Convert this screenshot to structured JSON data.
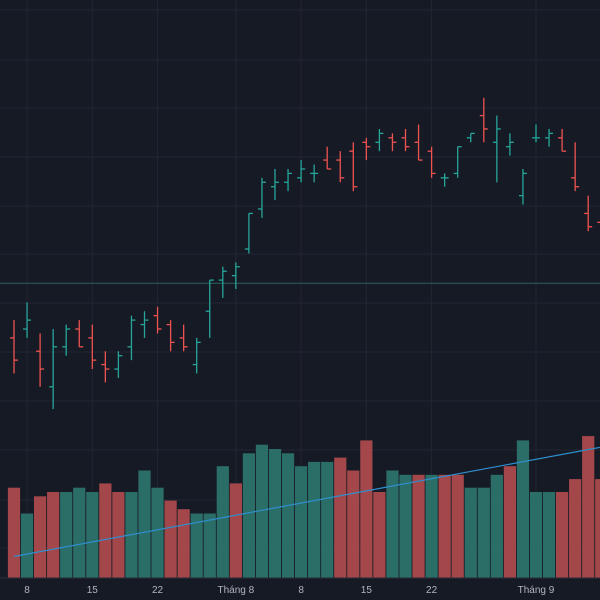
{
  "colors": {
    "background": "#161a25",
    "grid": "#232632",
    "up": "#26a69a",
    "down": "#ef5350",
    "vol_up": "#2b6e68",
    "vol_down": "#a4474a",
    "trend": "#2f8fce",
    "axis_text": "#b2b5be",
    "price_line": "#2b5f63"
  },
  "chart_data": {
    "type": "bar",
    "subtype": "ohlc-with-volume",
    "grid": true,
    "legend": "none",
    "title": "",
    "xaxis": {
      "ticks": [
        {
          "label": "8",
          "index": 1
        },
        {
          "label": "15",
          "index": 6
        },
        {
          "label": "22",
          "index": 11
        },
        {
          "label": "Tháng 8",
          "index": 17
        },
        {
          "label": "8",
          "index": 22
        },
        {
          "label": "15",
          "index": 27
        },
        {
          "label": "22",
          "index": 32
        },
        {
          "label": "Tháng 9",
          "index": 40
        }
      ]
    },
    "ylim": [
      -10,
      120
    ],
    "price_line": 56.3,
    "ohlc": [
      [
        44,
        48,
        36,
        39
      ],
      [
        46,
        52,
        44,
        48
      ],
      [
        41,
        45,
        33,
        37
      ],
      [
        33,
        46,
        28,
        42
      ],
      [
        42,
        47,
        40,
        46
      ],
      [
        46,
        48,
        42,
        42
      ],
      [
        44,
        47,
        37,
        39
      ],
      [
        38,
        41,
        34,
        37
      ],
      [
        37,
        41,
        35,
        40
      ],
      [
        42,
        49,
        39,
        48
      ],
      [
        47,
        50,
        44,
        48
      ],
      [
        49,
        51,
        45,
        46
      ],
      [
        47,
        48,
        41,
        43
      ],
      [
        44,
        47,
        41,
        42
      ],
      [
        38,
        44,
        36,
        43
      ],
      [
        50,
        57,
        44,
        57
      ],
      [
        57,
        60,
        53,
        59
      ],
      [
        58,
        61,
        55,
        60
      ],
      [
        64,
        72,
        63,
        72
      ],
      [
        73,
        80,
        71,
        79
      ],
      [
        78,
        82,
        75,
        79
      ],
      [
        79,
        82,
        77,
        81
      ],
      [
        80,
        84,
        79,
        82
      ],
      [
        81,
        83,
        79,
        81
      ],
      [
        84,
        87,
        82,
        82
      ],
      [
        84,
        86,
        79,
        80
      ],
      [
        86,
        88,
        77,
        78
      ],
      [
        88,
        89,
        84,
        87
      ],
      [
        88,
        91,
        86,
        90
      ],
      [
        89,
        90,
        86,
        88
      ],
      [
        89,
        91,
        86,
        87
      ],
      [
        88,
        92,
        84,
        84
      ],
      [
        86,
        87,
        80,
        81
      ],
      [
        80,
        81,
        78,
        80
      ],
      [
        81,
        87,
        80,
        87
      ],
      [
        89,
        90,
        88,
        90
      ],
      [
        94,
        98,
        88,
        91
      ],
      [
        88,
        94,
        79,
        91
      ],
      [
        87,
        90,
        85,
        88
      ],
      [
        76,
        82,
        74,
        81
      ],
      [
        89,
        92,
        88,
        89
      ],
      [
        89,
        91,
        87,
        90
      ],
      [
        89,
        91,
        86,
        86
      ],
      [
        80,
        88,
        77,
        78
      ],
      [
        72,
        76,
        68,
        69
      ],
      [
        70,
        72,
        61,
        66
      ],
      [
        71,
        76,
        64,
        68
      ]
    ],
    "volume": [
      [
        21,
        "down"
      ],
      [
        15,
        "up"
      ],
      [
        19,
        "down"
      ],
      [
        20,
        "down"
      ],
      [
        20,
        "up"
      ],
      [
        21,
        "up"
      ],
      [
        20,
        "up"
      ],
      [
        22,
        "down"
      ],
      [
        20,
        "down"
      ],
      [
        20,
        "up"
      ],
      [
        25,
        "up"
      ],
      [
        21,
        "up"
      ],
      [
        18,
        "down"
      ],
      [
        16,
        "down"
      ],
      [
        15,
        "up"
      ],
      [
        15,
        "up"
      ],
      [
        26,
        "up"
      ],
      [
        22,
        "down"
      ],
      [
        29,
        "up"
      ],
      [
        31,
        "up"
      ],
      [
        30,
        "up"
      ],
      [
        29,
        "up"
      ],
      [
        26,
        "up"
      ],
      [
        27,
        "up"
      ],
      [
        27,
        "up"
      ],
      [
        28,
        "down"
      ],
      [
        25,
        "down"
      ],
      [
        32,
        "down"
      ],
      [
        20,
        "down"
      ],
      [
        25,
        "up"
      ],
      [
        24,
        "up"
      ],
      [
        24,
        "down"
      ],
      [
        24,
        "up"
      ],
      [
        24,
        "down"
      ],
      [
        24,
        "down"
      ],
      [
        21,
        "up"
      ],
      [
        21,
        "up"
      ],
      [
        24,
        "up"
      ],
      [
        26,
        "down"
      ],
      [
        32,
        "up"
      ],
      [
        20,
        "up"
      ],
      [
        20,
        "up"
      ],
      [
        20,
        "down"
      ],
      [
        23,
        "down"
      ],
      [
        33,
        "down"
      ],
      [
        23,
        "down"
      ],
      [
        23,
        "down"
      ]
    ],
    "trendline": [
      [
        0,
        5
      ],
      [
        46,
        31
      ]
    ]
  }
}
